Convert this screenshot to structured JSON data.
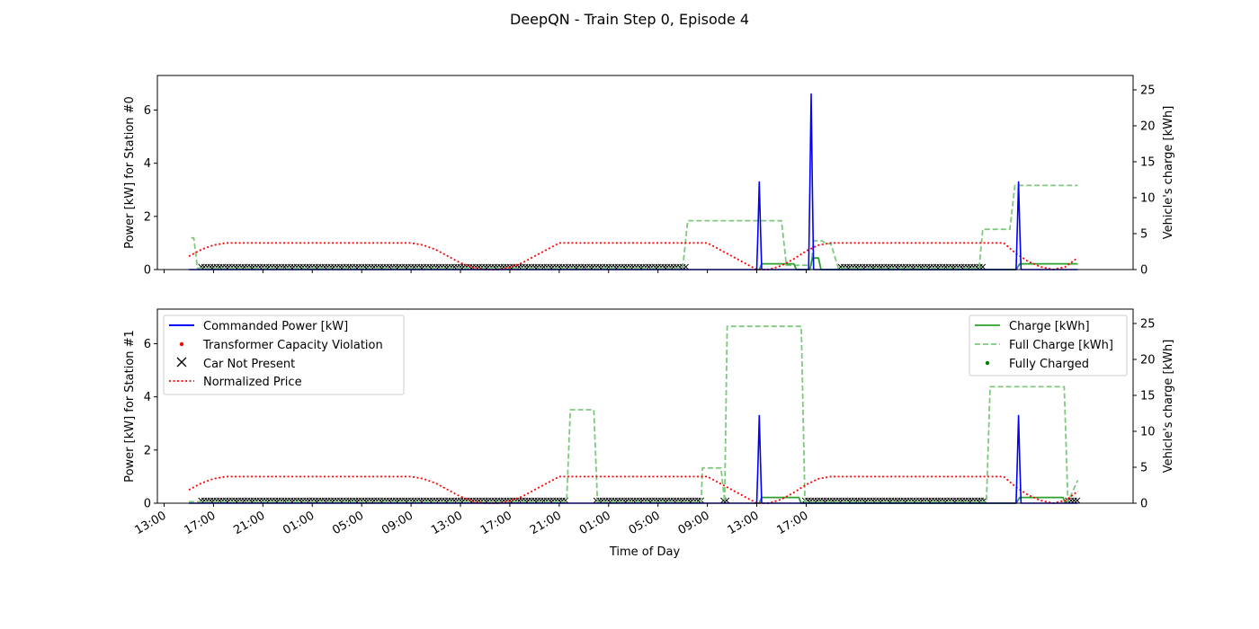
{
  "figure": {
    "title": "DeepQN - Train Step 0, Episode 4"
  },
  "colors": {
    "commanded_power": "#0000ff",
    "violation": "#ff0000",
    "car_not_present": "#000000",
    "price": "#ff0000",
    "charge": "#2ca02c",
    "full_charge": "#7fc97f",
    "fully_charged": "#008000"
  },
  "chart_data": [
    {
      "type": "line",
      "panel": "top",
      "ylabel_left": "Power [kW] for Station #0",
      "ylabel_right": "Vehicle's charge [kWh]",
      "xlabel": "",
      "ylim_left": [
        0,
        7.3
      ],
      "ylim_right": [
        0,
        27
      ],
      "yticks_left": [
        "0",
        "2",
        "4",
        "6"
      ],
      "yticks_right": [
        "0",
        "5",
        "10",
        "15",
        "20",
        "25"
      ],
      "x_range_hours": [
        13,
        74
      ],
      "xticks": [
        "13:00",
        "17:00",
        "21:00",
        "01:00",
        "05:00",
        "09:00",
        "13:00",
        "17:00",
        "21:00",
        "01:00",
        "05:00",
        "09:00",
        "13:00",
        "17:00"
      ],
      "series": [
        {
          "name": "Commanded Power [kW]",
          "axis": "left",
          "style": "solid",
          "x": [
            15.0,
            61.0,
            61.1,
            61.2,
            61.3,
            61.4,
            65.2,
            65.3,
            65.4,
            65.5,
            65.6,
            82.0,
            82.1,
            82.2,
            82.3,
            82.4,
            87.0
          ],
          "y": [
            0,
            0,
            1.5,
            3.3,
            1.5,
            0,
            0,
            3.2,
            6.6,
            3.2,
            0,
            0,
            1.5,
            3.3,
            1.5,
            0,
            0
          ]
        },
        {
          "name": "Normalized Price",
          "axis": "left",
          "style": "dotted",
          "x": [
            15.0,
            16.0,
            17.0,
            18.0,
            19.0,
            33.0,
            34.0,
            35.0,
            36.0,
            37.0,
            38.0,
            39.0,
            40.0,
            41.0,
            42.0,
            43.0,
            44.0,
            45.0,
            57.0,
            58.0,
            59.0,
            60.0,
            61.0,
            62.0,
            63.0,
            64.0,
            65.0,
            66.0,
            67.0,
            68.0,
            69.0,
            81.0,
            82.0,
            83.0,
            84.0,
            85.0,
            86.0,
            87.0
          ],
          "y": [
            0.5,
            0.75,
            0.92,
            1.0,
            1.0,
            1.0,
            0.92,
            0.75,
            0.5,
            0.25,
            0.08,
            0.0,
            0.0,
            0.08,
            0.25,
            0.5,
            0.75,
            1.0,
            1.0,
            0.75,
            0.5,
            0.25,
            0.0,
            0.0,
            0.15,
            0.4,
            0.7,
            0.92,
            1.0,
            1.0,
            1.0,
            1.0,
            0.6,
            0.3,
            0.1,
            0.0,
            0.1,
            0.45
          ]
        },
        {
          "name": "Full Charge [kWh]",
          "axis": "right",
          "style": "dashed",
          "x": [
            15.2,
            15.4,
            15.7,
            16.0,
            55.0,
            55.4,
            62.0,
            63.0,
            63.4,
            64.0,
            65.4,
            65.6,
            66.3,
            66.6,
            67.0,
            67.6,
            67.8,
            79.0,
            79.3,
            81.5,
            81.9,
            87.0
          ],
          "y": [
            4.4,
            4.4,
            0.2,
            0.2,
            0.2,
            6.8,
            6.8,
            6.8,
            0.6,
            0.6,
            0.6,
            4.0,
            4.0,
            3.6,
            3.6,
            0.2,
            0.2,
            0.2,
            5.6,
            5.6,
            11.7,
            11.7
          ]
        },
        {
          "name": "Charge [kWh]",
          "axis": "right",
          "style": "solid",
          "x": [
            60.8,
            61.2,
            61.4,
            64.0,
            64.2,
            65.3,
            65.5,
            66.0,
            66.2,
            82.0,
            82.3,
            87.0
          ],
          "y": [
            0,
            0,
            0.8,
            0.8,
            0,
            0,
            1.6,
            1.6,
            0,
            0,
            0.8,
            0.8
          ]
        }
      ],
      "car_not_present_ranges": [
        [
          16.0,
          55.3
        ],
        [
          67.8,
          79.3
        ]
      ]
    },
    {
      "type": "line",
      "panel": "bottom",
      "ylabel_left": "Power [kW] for Station #1",
      "ylabel_right": "Vehicle's charge [kWh]",
      "xlabel": "Time of Day",
      "ylim_left": [
        0,
        7.3
      ],
      "ylim_right": [
        0,
        27
      ],
      "yticks_left": [
        "0",
        "2",
        "4",
        "6"
      ],
      "yticks_right": [
        "0",
        "5",
        "10",
        "15",
        "20",
        "25"
      ],
      "x_range_hours": [
        13,
        74
      ],
      "xticks": [
        "13:00",
        "17:00",
        "21:00",
        "01:00",
        "05:00",
        "09:00",
        "13:00",
        "17:00",
        "21:00",
        "01:00",
        "05:00",
        "09:00",
        "13:00",
        "17:00"
      ],
      "legend_left": [
        "Commanded Power [kW]",
        "Transformer Capacity Violation",
        "Car Not Present",
        "Normalized Price"
      ],
      "legend_right": [
        "Charge [kWh]",
        "Full Charge [kWh]",
        "Fully Charged"
      ],
      "series": [
        {
          "name": "Commanded Power [kW]",
          "axis": "left",
          "style": "solid",
          "x": [
            15.0,
            61.0,
            61.1,
            61.2,
            61.3,
            61.4,
            82.0,
            82.1,
            82.2,
            82.3,
            82.4,
            87.0
          ],
          "y": [
            0,
            0,
            1.5,
            3.3,
            1.5,
            0,
            0,
            1.5,
            3.3,
            1.5,
            0,
            0
          ]
        },
        {
          "name": "Normalized Price",
          "axis": "left",
          "style": "dotted",
          "x": [
            15.0,
            16.0,
            17.0,
            18.0,
            19.0,
            33.0,
            34.0,
            35.0,
            36.0,
            37.0,
            38.0,
            39.0,
            40.0,
            41.0,
            42.0,
            43.0,
            44.0,
            45.0,
            57.0,
            58.0,
            59.0,
            60.0,
            61.0,
            62.0,
            63.0,
            64.0,
            65.0,
            66.0,
            67.0,
            68.0,
            69.0,
            81.0,
            82.0,
            83.0,
            84.0,
            85.0,
            86.0,
            87.0
          ],
          "y": [
            0.5,
            0.75,
            0.92,
            1.0,
            1.0,
            1.0,
            0.92,
            0.75,
            0.5,
            0.25,
            0.08,
            0.0,
            0.0,
            0.08,
            0.25,
            0.5,
            0.75,
            1.0,
            1.0,
            0.75,
            0.5,
            0.25,
            0.0,
            0.0,
            0.15,
            0.4,
            0.7,
            0.92,
            1.0,
            1.0,
            1.0,
            1.0,
            0.6,
            0.3,
            0.1,
            0.0,
            0.1,
            0.45
          ]
        },
        {
          "name": "Full Charge [kWh]",
          "axis": "right",
          "style": "dashed",
          "x": [
            15.0,
            45.6,
            45.9,
            47.8,
            48.1,
            56.5,
            56.6,
            58.1,
            58.4,
            58.6,
            64.6,
            64.9,
            79.6,
            79.9,
            85.9,
            86.2,
            87.0
          ],
          "y": [
            0.2,
            0.2,
            13.0,
            13.0,
            0.2,
            0.2,
            4.9,
            4.9,
            0.2,
            24.6,
            24.6,
            0.2,
            0.2,
            16.2,
            16.2,
            0.2,
            3.2
          ]
        },
        {
          "name": "Charge [kWh]",
          "axis": "right",
          "style": "solid",
          "x": [
            60.8,
            61.2,
            61.4,
            64.4,
            64.6,
            82.0,
            82.3,
            85.8,
            86.0
          ],
          "y": [
            0,
            0,
            0.8,
            0.8,
            0,
            0,
            0.8,
            0.8,
            0
          ]
        }
      ],
      "car_not_present_ranges": [
        [
          16.0,
          45.6
        ],
        [
          48.0,
          56.6
        ],
        [
          58.3,
          58.6
        ],
        [
          64.9,
          79.6
        ],
        [
          86.2,
          87.0
        ]
      ]
    }
  ]
}
